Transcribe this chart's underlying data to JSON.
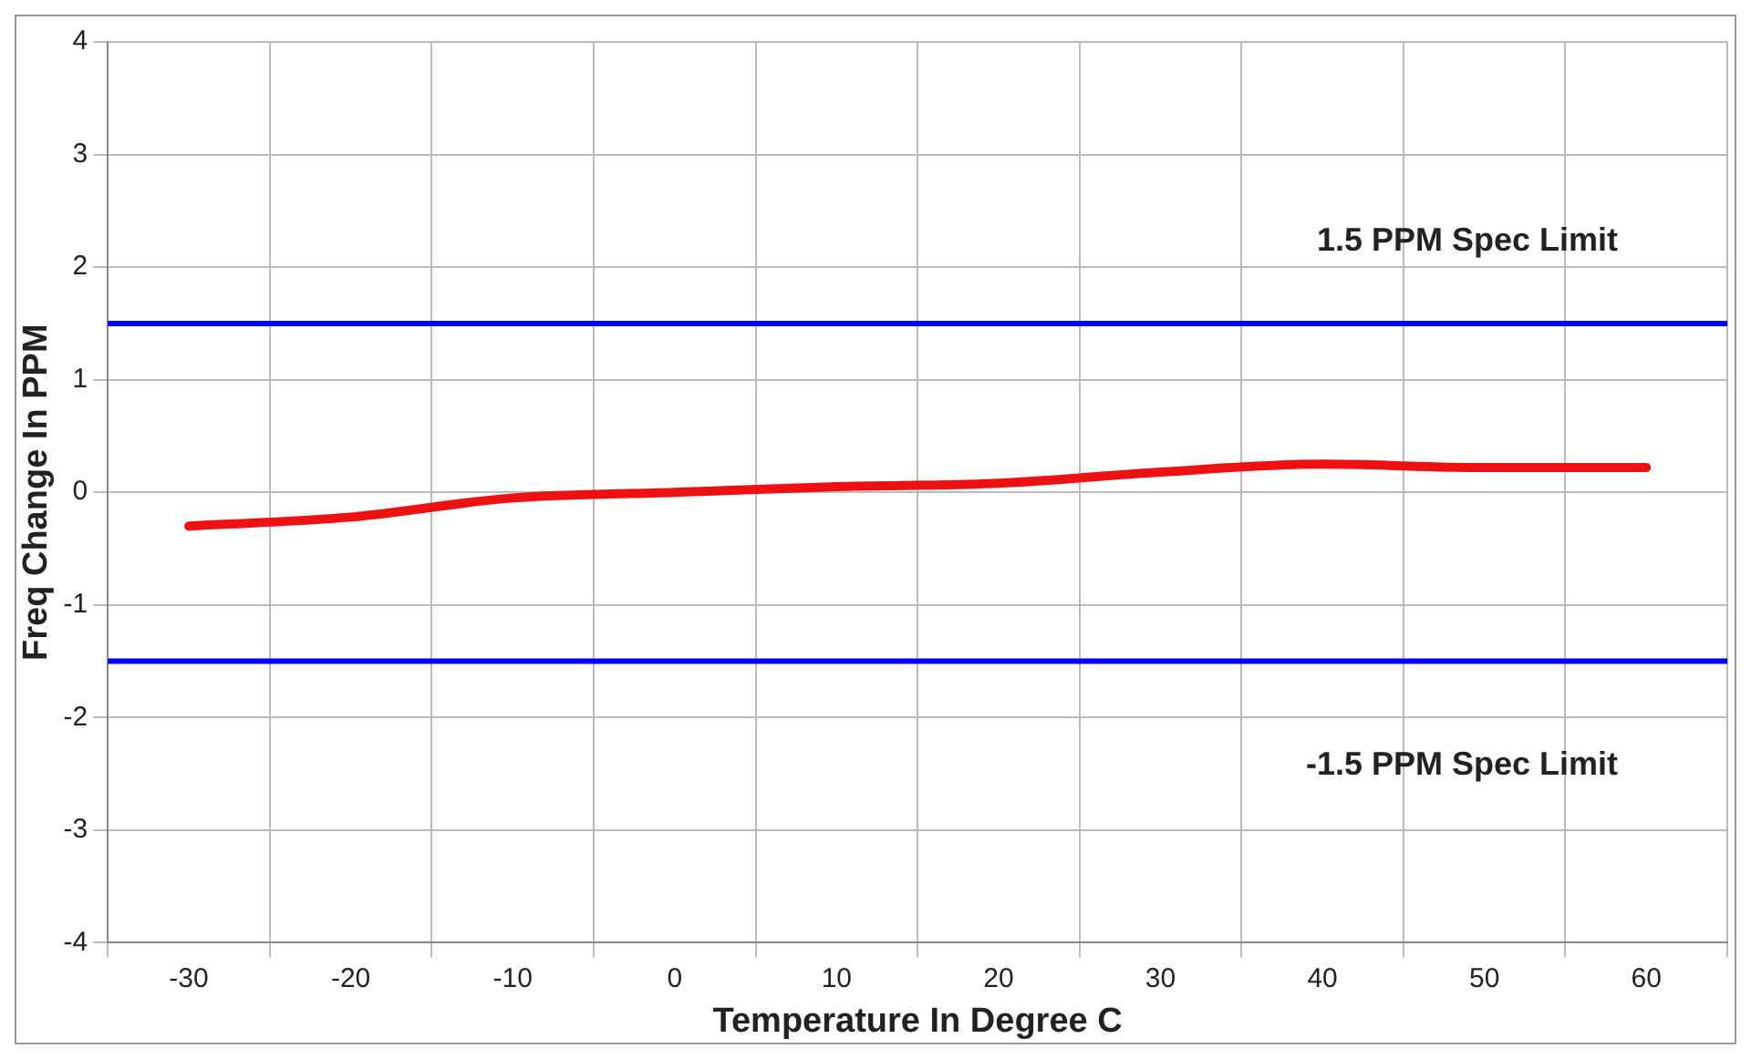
{
  "chart_data": {
    "type": "line",
    "xlabel": "Temperature In Degree C",
    "ylabel": "Freq Change In PPM",
    "categories": [
      "-30",
      "-20",
      "-10",
      "0",
      "10",
      "20",
      "30",
      "40",
      "50",
      "60"
    ],
    "series": [
      {
        "color": "#ee1111",
        "values": [
          -0.3,
          -0.22,
          -0.05,
          0.0,
          0.05,
          0.08,
          0.18,
          0.25,
          0.22,
          0.22
        ]
      }
    ],
    "ylim": [
      -4,
      4
    ],
    "yticks": [
      -4,
      -3,
      -2,
      -1,
      0,
      1,
      2,
      3,
      4
    ],
    "grid": true,
    "legend": false,
    "marker": "none",
    "line_style": "solid",
    "ref_lines": [
      {
        "axis": "y",
        "value": 1.5,
        "label": "1.5 PPM Spec Limit",
        "color": "#0000ff"
      },
      {
        "axis": "y",
        "value": -1.5,
        "label": "-1.5 PPM Spec Limit",
        "color": "#0000ff"
      }
    ]
  }
}
